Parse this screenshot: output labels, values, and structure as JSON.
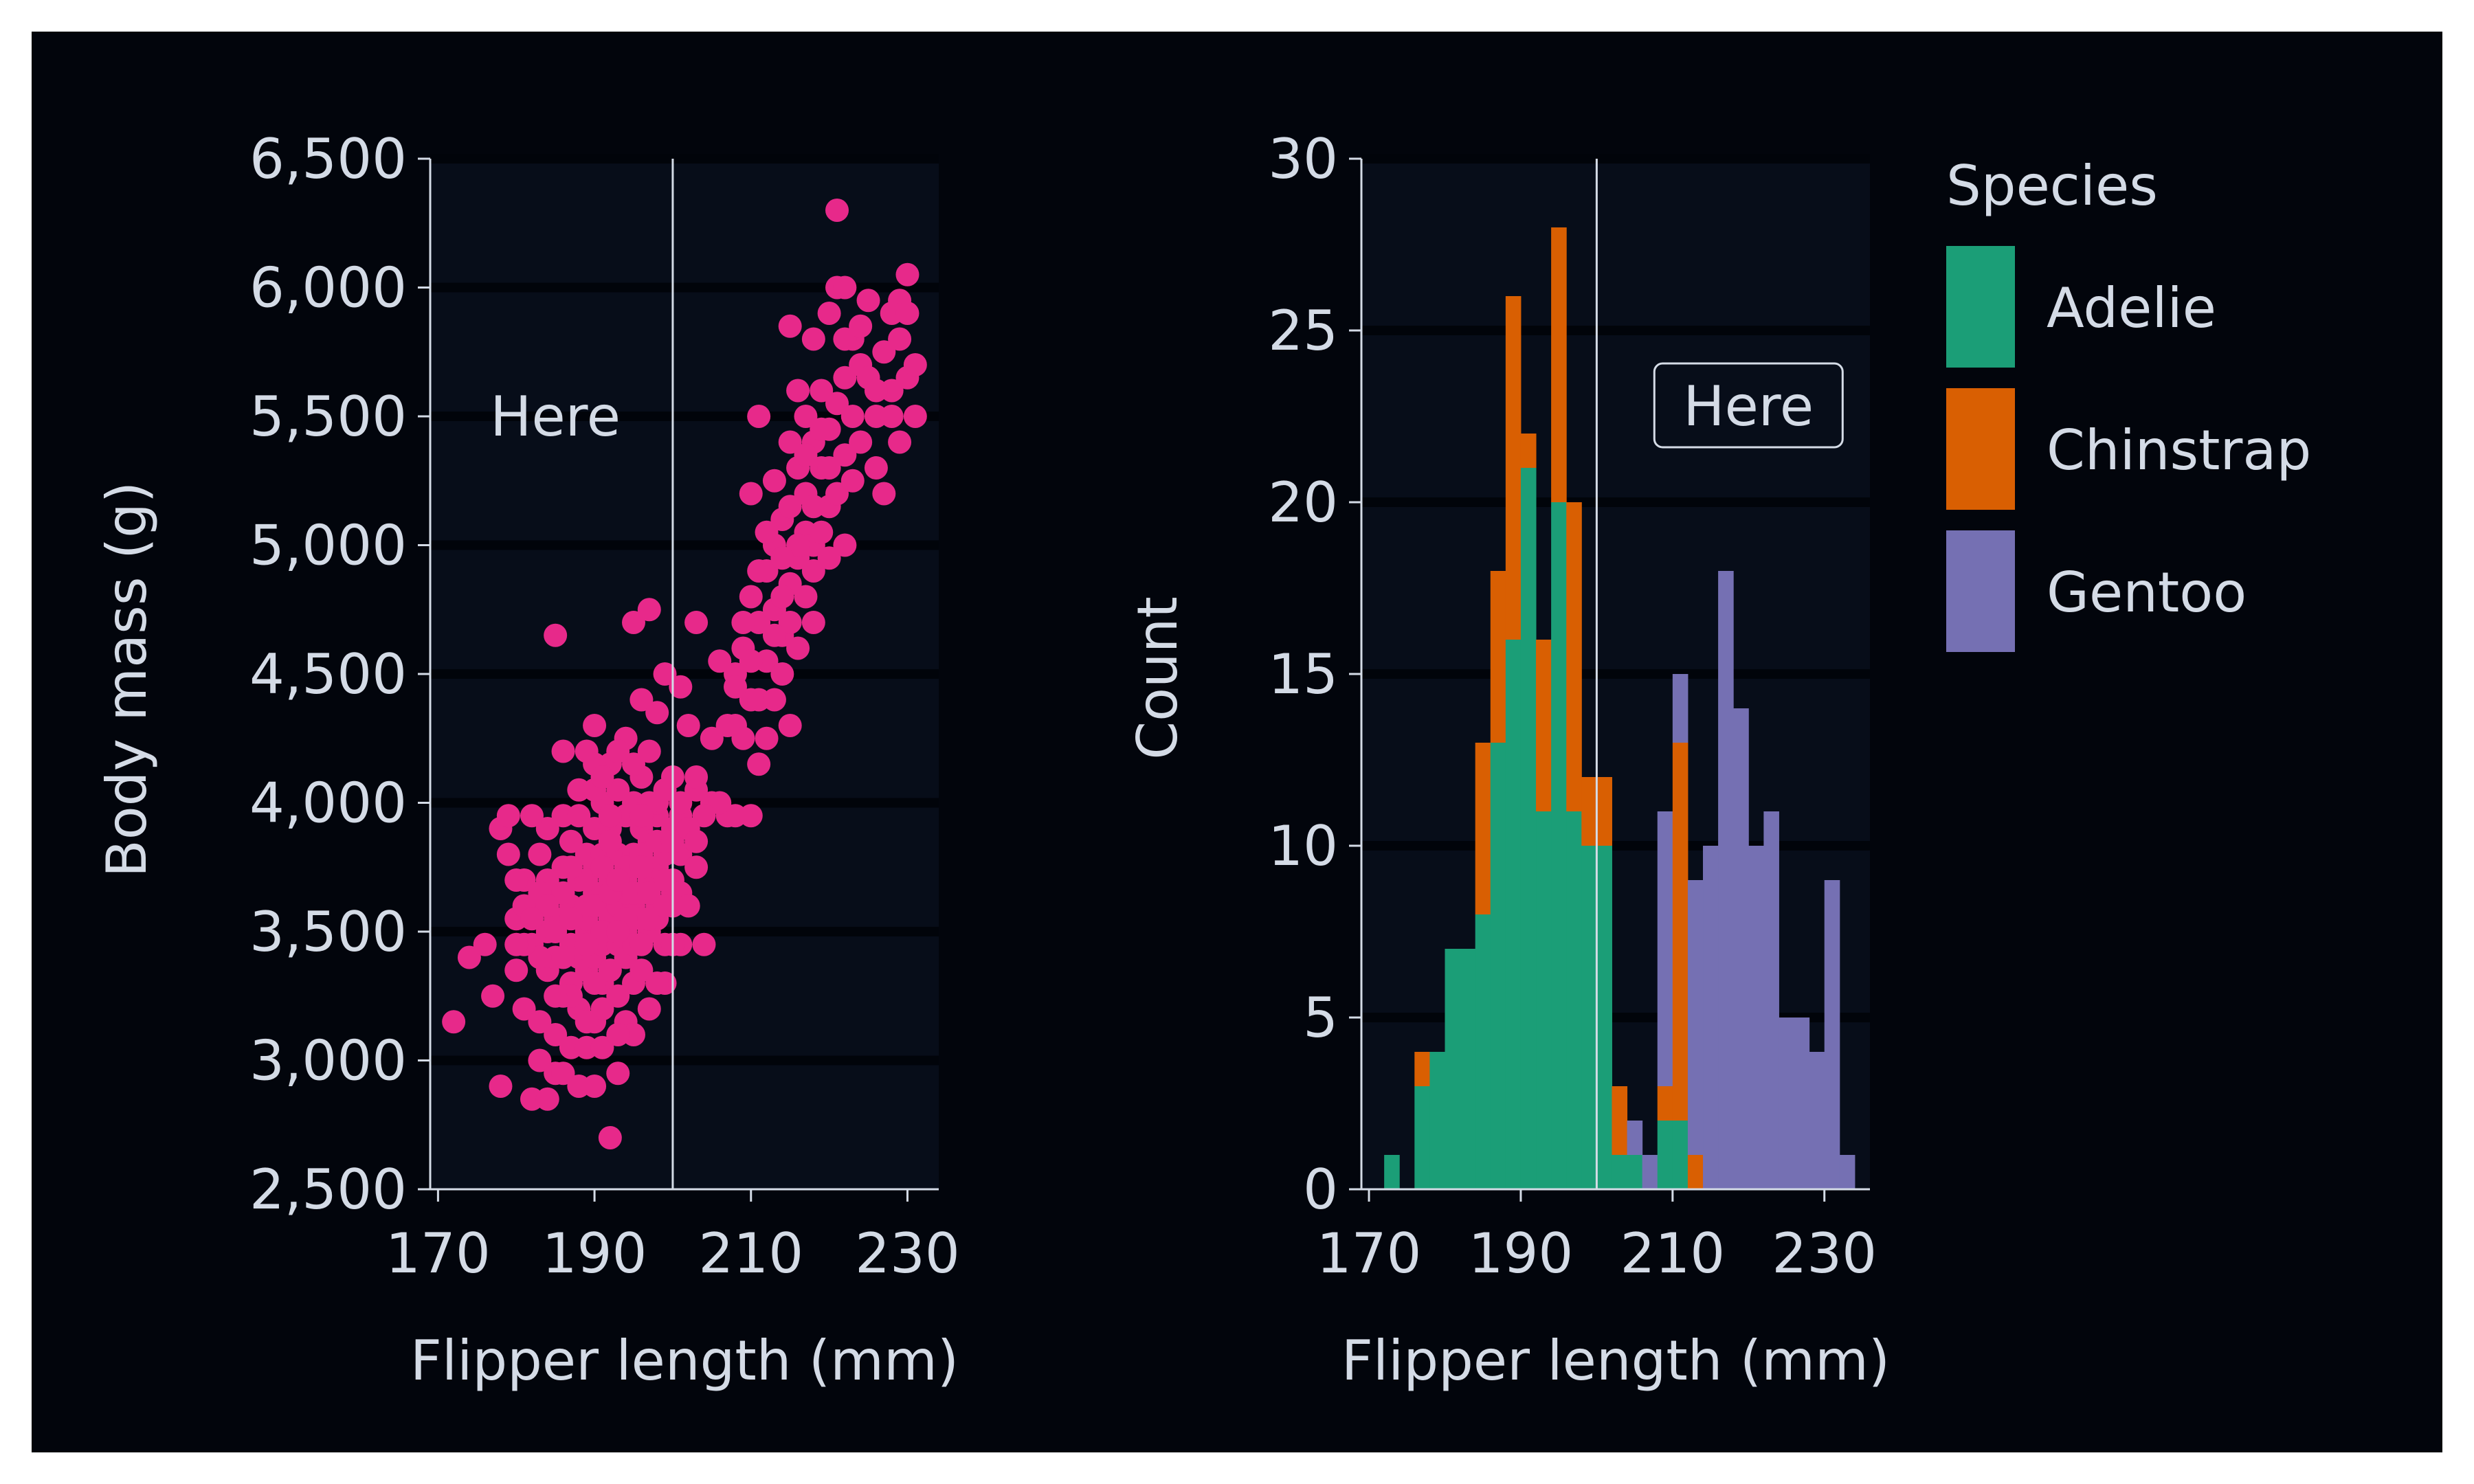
{
  "colors": {
    "page": "#ffffff",
    "figure_bg": "#02050c",
    "axes_bg": "#070d19",
    "grid": "#01040a",
    "text": "#d4dbe6",
    "scatter": "#e7298a",
    "adelie": "#1b9e77",
    "chinstrap": "#d95f02",
    "gentoo": "#7570b3",
    "vline": "#d4dbe6"
  },
  "chart_data": [
    {
      "type": "scatter",
      "xlabel": "Flipper length (mm)",
      "ylabel": "Body mass (g)",
      "xlim": [
        169,
        234
      ],
      "ylim": [
        2500,
        6500
      ],
      "xticks": [
        170,
        190,
        210,
        230
      ],
      "xtick_labels": [
        "170",
        "190",
        "210",
        "230"
      ],
      "yticks": [
        2500,
        3000,
        3500,
        4000,
        4500,
        5000,
        5500,
        6000,
        6500
      ],
      "ytick_labels": [
        "2,500",
        "3,000",
        "3,500",
        "4,000",
        "4,500",
        "5,000",
        "5,500",
        "6,000",
        "6,500"
      ],
      "grid": "horizontal",
      "vline_x": 200,
      "annotation": {
        "text": "Here",
        "x": 185,
        "y": 5500,
        "boxed": false
      },
      "points": [
        [
          172,
          3150
        ],
        [
          174,
          3400
        ],
        [
          176,
          3450
        ],
        [
          178,
          3900
        ],
        [
          177,
          3250
        ],
        [
          179,
          3950
        ],
        [
          178,
          2900
        ],
        [
          180,
          3550
        ],
        [
          180,
          3350
        ],
        [
          181,
          3700
        ],
        [
          181,
          3200
        ],
        [
          182,
          2850
        ],
        [
          182,
          3600
        ],
        [
          182,
          3450
        ],
        [
          183,
          3800
        ],
        [
          183,
          3150
        ],
        [
          183,
          3000
        ],
        [
          184,
          3500
        ],
        [
          184,
          3900
        ],
        [
          184,
          2850
        ],
        [
          184,
          3350
        ],
        [
          185,
          4650
        ],
        [
          185,
          3650
        ],
        [
          185,
          3100
        ],
        [
          185,
          3400
        ],
        [
          185,
          2950
        ],
        [
          186,
          3550
        ],
        [
          186,
          3750
        ],
        [
          186,
          3250
        ],
        [
          186,
          3950
        ],
        [
          186,
          2950
        ],
        [
          187,
          3450
        ],
        [
          187,
          3850
        ],
        [
          187,
          3050
        ],
        [
          187,
          3600
        ],
        [
          187,
          3300
        ],
        [
          188,
          3550
        ],
        [
          188,
          3700
        ],
        [
          188,
          3400
        ],
        [
          188,
          3200
        ],
        [
          188,
          2900
        ],
        [
          189,
          3600
        ],
        [
          189,
          3800
        ],
        [
          189,
          3500
        ],
        [
          189,
          4200
        ],
        [
          189,
          3350
        ],
        [
          189,
          3050
        ],
        [
          190,
          3500
        ],
        [
          190,
          3650
        ],
        [
          190,
          3900
        ],
        [
          190,
          3400
        ],
        [
          190,
          3750
        ],
        [
          190,
          4300
        ],
        [
          190,
          3150
        ],
        [
          190,
          2900
        ],
        [
          191,
          3600
        ],
        [
          191,
          3450
        ],
        [
          191,
          3800
        ],
        [
          191,
          3300
        ],
        [
          191,
          4000
        ],
        [
          191,
          3050
        ],
        [
          192,
          3550
        ],
        [
          192,
          3700
        ],
        [
          192,
          3900
        ],
        [
          192,
          4150
        ],
        [
          192,
          3350
        ],
        [
          192,
          2700
        ],
        [
          193,
          3600
        ],
        [
          193,
          3450
        ],
        [
          193,
          3800
        ],
        [
          193,
          4050
        ],
        [
          193,
          3250
        ],
        [
          193,
          2950
        ],
        [
          194,
          3500
        ],
        [
          194,
          3700
        ],
        [
          194,
          3950
        ],
        [
          194,
          4250
        ],
        [
          194,
          3400
        ],
        [
          194,
          3150
        ],
        [
          195,
          3600
        ],
        [
          195,
          3800
        ],
        [
          195,
          4000
        ],
        [
          195,
          3450
        ],
        [
          195,
          4700
        ],
        [
          195,
          3300
        ],
        [
          196,
          3650
        ],
        [
          196,
          3900
        ],
        [
          196,
          4100
        ],
        [
          196,
          4400
        ],
        [
          196,
          3550
        ],
        [
          196,
          3350
        ],
        [
          197,
          3700
        ],
        [
          197,
          3850
        ],
        [
          197,
          4200
        ],
        [
          197,
          4750
        ],
        [
          197,
          3500
        ],
        [
          198,
          3750
        ],
        [
          198,
          3950
        ],
        [
          198,
          4000
        ],
        [
          198,
          4350
        ],
        [
          198,
          3600
        ],
        [
          199,
          3800
        ],
        [
          199,
          4050
        ],
        [
          199,
          3450
        ],
        [
          199,
          4500
        ],
        [
          200,
          3900
        ],
        [
          200,
          3700
        ],
        [
          200,
          4100
        ],
        [
          201,
          4450
        ],
        [
          201,
          3950
        ],
        [
          202,
          4300
        ],
        [
          203,
          4700
        ],
        [
          203,
          4050
        ],
        [
          205,
          4000
        ],
        [
          206,
          4550
        ],
        [
          207,
          3950
        ],
        [
          208,
          4500
        ],
        [
          208,
          3950
        ],
        [
          208,
          4300
        ],
        [
          209,
          4600
        ],
        [
          209,
          4250
        ],
        [
          210,
          4400
        ],
        [
          210,
          3950
        ],
        [
          210,
          4800
        ],
        [
          210,
          5200
        ],
        [
          211,
          4150
        ],
        [
          211,
          4700
        ],
        [
          211,
          5500
        ],
        [
          211,
          4400
        ],
        [
          212,
          4550
        ],
        [
          212,
          4900
        ],
        [
          212,
          4250
        ],
        [
          213,
          5000
        ],
        [
          213,
          4400
        ],
        [
          213,
          4750
        ],
        [
          213,
          5250
        ],
        [
          214,
          4650
        ],
        [
          214,
          5100
        ],
        [
          214,
          4500
        ],
        [
          215,
          4850
        ],
        [
          215,
          5400
        ],
        [
          215,
          5850
        ],
        [
          215,
          4700
        ],
        [
          216,
          4950
        ],
        [
          216,
          5300
        ],
        [
          216,
          4600
        ],
        [
          216,
          5600
        ],
        [
          217,
          5050
        ],
        [
          217,
          4800
        ],
        [
          217,
          5500
        ],
        [
          217,
          5200
        ],
        [
          218,
          5000
        ],
        [
          218,
          5400
        ],
        [
          218,
          4700
        ],
        [
          218,
          5800
        ],
        [
          219,
          5300
        ],
        [
          219,
          5050
        ],
        [
          219,
          5600
        ],
        [
          220,
          5150
        ],
        [
          220,
          5450
        ],
        [
          220,
          5900
        ],
        [
          220,
          4950
        ],
        [
          221,
          6000
        ],
        [
          221,
          5550
        ],
        [
          221,
          5200
        ],
        [
          221,
          6300
        ],
        [
          222,
          5650
        ],
        [
          222,
          5350
        ],
        [
          222,
          5000
        ],
        [
          222,
          6000
        ],
        [
          223,
          5500
        ],
        [
          223,
          5800
        ],
        [
          223,
          5250
        ],
        [
          224,
          5700
        ],
        [
          224,
          5400
        ],
        [
          225,
          5650
        ],
        [
          225,
          5950
        ],
        [
          226,
          5500
        ],
        [
          226,
          5300
        ],
        [
          227,
          5750
        ],
        [
          228,
          5600
        ],
        [
          228,
          5500
        ],
        [
          229,
          5800
        ],
        [
          229,
          5950
        ],
        [
          230,
          5650
        ],
        [
          230,
          6050
        ],
        [
          231,
          5700
        ],
        [
          231,
          5500
        ],
        [
          229,
          5400
        ],
        [
          227,
          5200
        ],
        [
          218,
          5150
        ],
        [
          216,
          5000
        ],
        [
          214,
          4950
        ],
        [
          212,
          5050
        ],
        [
          213,
          4650
        ],
        [
          215,
          5150
        ],
        [
          217,
          5350
        ],
        [
          219,
          5450
        ],
        [
          208,
          4450
        ],
        [
          207,
          4300
        ],
        [
          205,
          4250
        ],
        [
          206,
          4000
        ],
        [
          209,
          4700
        ],
        [
          210,
          4550
        ],
        [
          211,
          4900
        ],
        [
          214,
          4800
        ],
        [
          215,
          4300
        ],
        [
          218,
          4900
        ],
        [
          220,
          5300
        ],
        [
          222,
          5800
        ],
        [
          224,
          5850
        ],
        [
          226,
          5600
        ],
        [
          228,
          5900
        ],
        [
          230,
          5900
        ],
        [
          186,
          4200
        ],
        [
          188,
          4050
        ],
        [
          190,
          4150
        ],
        [
          192,
          3950
        ],
        [
          194,
          3750
        ],
        [
          196,
          3800
        ],
        [
          198,
          3550
        ],
        [
          200,
          3650
        ],
        [
          201,
          3800
        ],
        [
          203,
          4100
        ],
        [
          204,
          3950
        ],
        [
          199,
          3300
        ],
        [
          197,
          3200
        ],
        [
          195,
          3100
        ],
        [
          193,
          3100
        ],
        [
          191,
          3200
        ],
        [
          189,
          3150
        ],
        [
          187,
          3250
        ],
        [
          185,
          3250
        ],
        [
          183,
          3400
        ],
        [
          181,
          3600
        ],
        [
          180,
          3700
        ],
        [
          179,
          3800
        ],
        [
          182,
          3950
        ],
        [
          184,
          3700
        ],
        [
          186,
          3400
        ],
        [
          188,
          3950
        ],
        [
          190,
          4050
        ],
        [
          192,
          3850
        ],
        [
          194,
          3650
        ],
        [
          196,
          3450
        ],
        [
          198,
          3300
        ],
        [
          200,
          3600
        ],
        [
          201,
          3450
        ],
        [
          197,
          4000
        ],
        [
          195,
          4150
        ],
        [
          193,
          4200
        ],
        [
          191,
          4100
        ],
        [
          189,
          3700
        ],
        [
          187,
          3750
        ],
        [
          185,
          3550
        ],
        [
          183,
          3650
        ],
        [
          181,
          3450
        ],
        [
          189,
          3550
        ],
        [
          190,
          3600
        ],
        [
          191,
          3750
        ],
        [
          192,
          3650
        ],
        [
          193,
          3700
        ],
        [
          194,
          3550
        ],
        [
          195,
          3650
        ],
        [
          196,
          3750
        ],
        [
          197,
          3550
        ],
        [
          198,
          3850
        ],
        [
          199,
          3700
        ],
        [
          200,
          3850
        ],
        [
          200,
          3450
        ],
        [
          201,
          3650
        ],
        [
          202,
          3900
        ],
        [
          203,
          3750
        ],
        [
          202,
          3600
        ],
        [
          204,
          3450
        ],
        [
          199,
          3600
        ],
        [
          191,
          3500
        ],
        [
          193,
          3500
        ],
        [
          185,
          3500
        ],
        [
          187,
          3550
        ],
        [
          189,
          3450
        ],
        [
          190,
          3300
        ],
        [
          186,
          3650
        ],
        [
          184,
          3600
        ],
        [
          182,
          3550
        ],
        [
          180,
          3450
        ],
        [
          196,
          3950
        ],
        [
          197,
          3650
        ],
        [
          201,
          4000
        ],
        [
          203,
          3850
        ]
      ]
    },
    {
      "type": "bar",
      "subtype": "stacked-histogram",
      "xlabel": "Flipper length (mm)",
      "ylabel": "Count",
      "xlim": [
        169,
        236
      ],
      "ylim": [
        0,
        30
      ],
      "xticks": [
        170,
        190,
        210,
        230
      ],
      "xtick_labels": [
        "170",
        "190",
        "210",
        "230"
      ],
      "yticks": [
        0,
        5,
        10,
        15,
        20,
        25,
        30
      ],
      "ytick_labels": [
        "0",
        "5",
        "10",
        "15",
        "20",
        "25",
        "30"
      ],
      "grid": "horizontal",
      "vline_x": 200,
      "annotation": {
        "text": "Here",
        "x": 220,
        "y": 22.8,
        "boxed": true
      },
      "bin_start": 172,
      "bin_width": 2,
      "series": [
        {
          "name": "Adelie",
          "values": [
            1,
            0,
            3,
            4,
            7,
            7,
            8,
            13,
            16,
            21,
            11,
            20,
            11,
            10,
            10,
            1,
            1,
            0,
            2,
            2,
            0,
            0,
            0,
            0,
            0,
            0,
            0,
            0,
            0,
            0,
            0
          ]
        },
        {
          "name": "Chinstrap",
          "values": [
            0,
            0,
            1,
            0,
            0,
            0,
            5,
            5,
            10,
            1,
            5,
            8,
            9,
            2,
            2,
            2,
            0,
            0,
            1,
            11,
            1,
            0,
            0,
            0,
            0,
            0,
            0,
            0,
            0,
            0,
            0
          ]
        },
        {
          "name": "Gentoo",
          "values": [
            0,
            0,
            0,
            0,
            0,
            0,
            0,
            0,
            0,
            0,
            0,
            0,
            0,
            0,
            0,
            0,
            1,
            1,
            8,
            2,
            8,
            10,
            18,
            14,
            10,
            11,
            5,
            5,
            4,
            9,
            1
          ]
        }
      ],
      "legend": {
        "title": "Species",
        "position": "right",
        "entries": [
          "Adelie",
          "Chinstrap",
          "Gentoo"
        ]
      }
    }
  ]
}
